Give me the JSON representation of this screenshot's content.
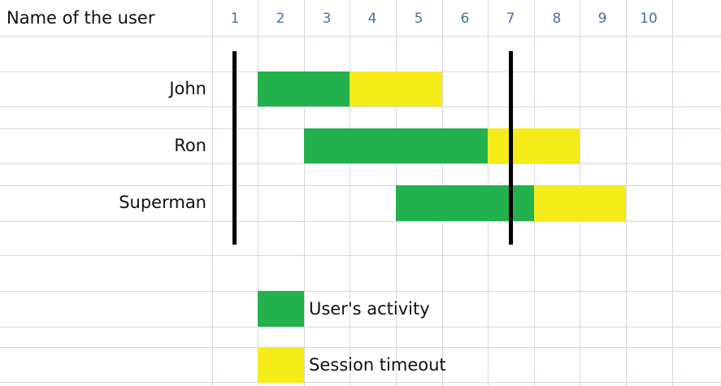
{
  "chart_data": {
    "type": "gantt",
    "header_label": "Name of the user",
    "x_ticks": [
      "1",
      "2",
      "3",
      "4",
      "5",
      "6",
      "7",
      "8",
      "9",
      "10"
    ],
    "users": [
      {
        "name": "John",
        "activity": [
          2,
          3
        ],
        "timeout": [
          4,
          5
        ]
      },
      {
        "name": "Ron",
        "activity": [
          3,
          6
        ],
        "timeout": [
          7,
          8
        ]
      },
      {
        "name": "Superman",
        "activity": [
          5,
          7
        ],
        "timeout": [
          8,
          9
        ]
      }
    ],
    "markers": [
      1,
      7
    ],
    "legend": [
      {
        "label": "User's activity",
        "color": "#22b14c"
      },
      {
        "label": "Session timeout",
        "color": "#f5ec1a"
      }
    ],
    "colors": {
      "activity": "#22b14c",
      "timeout": "#f5ec1a",
      "marker": "#000000",
      "grid": "#d6d6e4",
      "tick_text": "#4a6fa8"
    },
    "grid": true
  }
}
